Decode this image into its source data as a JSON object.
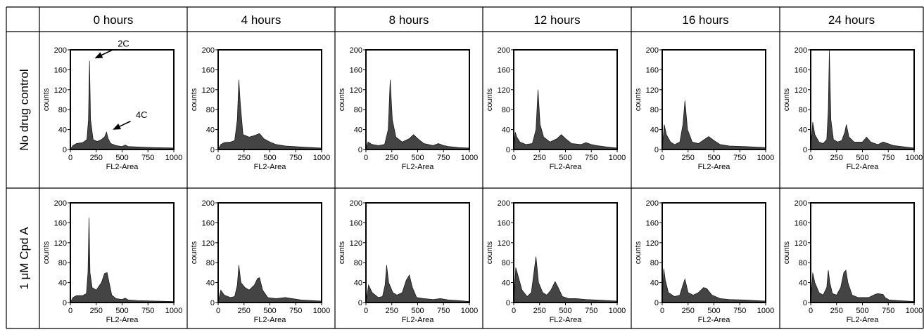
{
  "column_headers": [
    "0 hours",
    "4 hours",
    "8 hours",
    "12 hours",
    "16 hours",
    "24 hours"
  ],
  "row_labels": [
    "No drug control",
    "1 μM Cpd A"
  ],
  "chart_data": {
    "type": "area",
    "description_axis": {
      "xlabel": "FL2-Area",
      "ylabel": "counts",
      "xlim": [
        0,
        1000
      ],
      "ylim": [
        0,
        200
      ],
      "xticks": [
        "0",
        "250",
        "500",
        "750",
        "1000"
      ],
      "yticks": [
        "0",
        "40",
        "80",
        "120",
        "160",
        "200"
      ]
    },
    "annotations": [
      {
        "panel": "No drug control / 0 hours",
        "text": "2C",
        "x": 185,
        "y": 178
      },
      {
        "panel": "No drug control / 0 hours",
        "text": "4C",
        "x": 360,
        "y": 35
      }
    ],
    "panels": [
      {
        "row": "No drug control",
        "col": "0 hours",
        "x": [
          0,
          25,
          60,
          120,
          160,
          175,
          185,
          195,
          220,
          260,
          300,
          330,
          350,
          365,
          390,
          440,
          500,
          530,
          560,
          650,
          800,
          1000
        ],
        "y": [
          0,
          8,
          12,
          14,
          20,
          60,
          178,
          60,
          20,
          16,
          20,
          25,
          35,
          22,
          12,
          8,
          6,
          9,
          6,
          5,
          4,
          3
        ]
      },
      {
        "row": "No drug control",
        "col": "4 hours",
        "x": [
          0,
          25,
          60,
          120,
          160,
          185,
          200,
          215,
          240,
          300,
          350,
          400,
          440,
          500,
          560,
          650,
          800,
          1000
        ],
        "y": [
          0,
          10,
          14,
          15,
          18,
          60,
          140,
          90,
          30,
          25,
          28,
          32,
          22,
          15,
          10,
          7,
          5,
          3
        ]
      },
      {
        "row": "No drug control",
        "col": "8 hours",
        "x": [
          0,
          20,
          60,
          120,
          180,
          215,
          235,
          255,
          290,
          350,
          420,
          460,
          500,
          560,
          650,
          700,
          750,
          800,
          900,
          1000
        ],
        "y": [
          0,
          15,
          10,
          8,
          10,
          40,
          140,
          60,
          25,
          15,
          22,
          30,
          22,
          12,
          8,
          12,
          8,
          6,
          4,
          3
        ]
      },
      {
        "row": "No drug control",
        "col": "12 hours",
        "x": [
          0,
          15,
          30,
          60,
          120,
          180,
          215,
          235,
          255,
          290,
          350,
          420,
          460,
          500,
          560,
          650,
          700,
          750,
          800,
          900,
          1000
        ],
        "y": [
          0,
          35,
          25,
          15,
          10,
          12,
          40,
          120,
          50,
          25,
          15,
          22,
          30,
          22,
          12,
          10,
          14,
          10,
          8,
          5,
          3
        ]
      },
      {
        "row": "No drug control",
        "col": "16 hours",
        "x": [
          0,
          20,
          40,
          80,
          120,
          170,
          200,
          220,
          245,
          290,
          350,
          420,
          450,
          500,
          560,
          650,
          800,
          1000
        ],
        "y": [
          0,
          50,
          30,
          15,
          10,
          15,
          50,
          98,
          40,
          15,
          12,
          22,
          26,
          18,
          10,
          7,
          6,
          4
        ]
      },
      {
        "row": "No drug control",
        "col": "24 hours",
        "x": [
          0,
          20,
          40,
          80,
          120,
          155,
          170,
          180,
          195,
          220,
          260,
          300,
          330,
          345,
          370,
          420,
          500,
          540,
          580,
          650,
          700,
          800,
          1000
        ],
        "y": [
          0,
          55,
          30,
          15,
          12,
          20,
          80,
          200,
          60,
          20,
          15,
          18,
          35,
          50,
          25,
          15,
          15,
          25,
          15,
          10,
          15,
          8,
          3
        ]
      },
      {
        "row": "1 μM Cpd A",
        "col": "0 hours",
        "x": [
          0,
          25,
          60,
          120,
          155,
          170,
          180,
          190,
          210,
          250,
          300,
          330,
          355,
          375,
          400,
          440,
          500,
          530,
          560,
          650,
          800,
          1000
        ],
        "y": [
          0,
          10,
          14,
          14,
          18,
          60,
          170,
          60,
          30,
          25,
          40,
          58,
          60,
          40,
          15,
          8,
          6,
          9,
          5,
          4,
          3,
          2
        ]
      },
      {
        "row": "1 μM Cpd A",
        "col": "4 hours",
        "x": [
          0,
          25,
          60,
          120,
          160,
          185,
          200,
          220,
          260,
          300,
          350,
          380,
          400,
          430,
          480,
          560,
          650,
          800,
          1000
        ],
        "y": [
          0,
          25,
          15,
          10,
          12,
          35,
          75,
          40,
          30,
          25,
          35,
          48,
          50,
          25,
          10,
          8,
          10,
          5,
          3
        ]
      },
      {
        "row": "1 μM Cpd A",
        "col": "8 hours",
        "x": [
          0,
          25,
          60,
          120,
          160,
          185,
          200,
          220,
          260,
          300,
          350,
          390,
          420,
          450,
          490,
          560,
          650,
          720,
          800,
          900,
          1000
        ],
        "y": [
          0,
          35,
          20,
          10,
          12,
          35,
          75,
          40,
          20,
          15,
          20,
          45,
          55,
          30,
          10,
          8,
          6,
          8,
          5,
          4,
          2
        ]
      },
      {
        "row": "1 μM Cpd A",
        "col": "12 hours",
        "x": [
          0,
          20,
          40,
          80,
          130,
          170,
          195,
          215,
          240,
          280,
          320,
          360,
          400,
          430,
          470,
          530,
          600,
          700,
          800,
          1000
        ],
        "y": [
          0,
          70,
          55,
          25,
          12,
          20,
          60,
          92,
          40,
          20,
          15,
          25,
          42,
          30,
          12,
          8,
          8,
          6,
          5,
          3
        ]
      },
      {
        "row": "1 μM Cpd A",
        "col": "16 hours",
        "x": [
          0,
          15,
          30,
          60,
          120,
          170,
          200,
          220,
          250,
          300,
          350,
          400,
          430,
          480,
          560,
          650,
          800,
          1000
        ],
        "y": [
          0,
          68,
          45,
          20,
          12,
          15,
          35,
          47,
          20,
          15,
          20,
          30,
          28,
          15,
          8,
          6,
          5,
          3
        ]
      },
      {
        "row": "1 μM Cpd A",
        "col": "24 hours",
        "x": [
          0,
          20,
          40,
          80,
          120,
          155,
          170,
          185,
          210,
          250,
          290,
          320,
          340,
          360,
          400,
          460,
          560,
          620,
          650,
          700,
          720,
          760,
          850,
          1000
        ],
        "y": [
          0,
          60,
          40,
          20,
          15,
          30,
          65,
          40,
          18,
          15,
          30,
          60,
          65,
          40,
          15,
          10,
          10,
          16,
          18,
          16,
          10,
          5,
          4,
          2
        ]
      }
    ]
  }
}
